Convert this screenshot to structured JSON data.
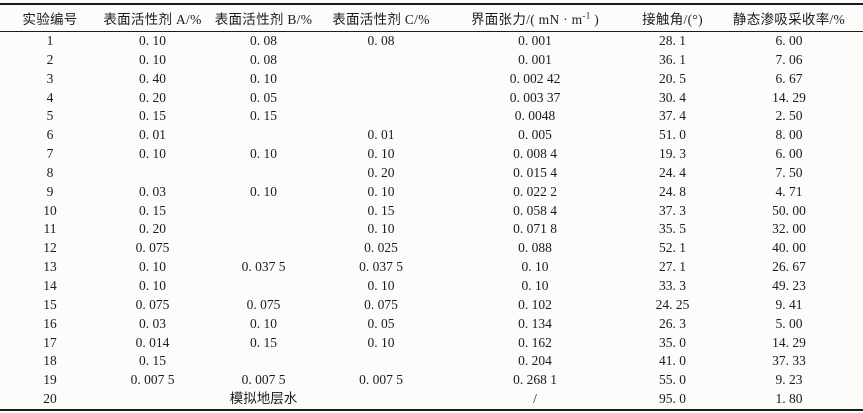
{
  "table": {
    "title_hint": "表面活性剂体系实验数据表",
    "columns": [
      {
        "key": "exp-no",
        "label": "实验编号"
      },
      {
        "key": "surfactant-a",
        "label": "表面活性剂 A/%"
      },
      {
        "key": "surfactant-b",
        "label": "表面活性剂 B/%"
      },
      {
        "key": "surfactant-c",
        "label": "表面活性剂 C/%"
      },
      {
        "key": "ift",
        "label_pre": "界面张力/( mN · m",
        "label_sup": "-1",
        "label_post": " )"
      },
      {
        "key": "contact-angle",
        "label": "接触角/(°)"
      },
      {
        "key": "recovery",
        "label": "静态渗吸采收率/%"
      }
    ],
    "rows": [
      [
        "1",
        "0. 10",
        "0. 08",
        "0. 08",
        "0. 001",
        "28. 1",
        "6. 00"
      ],
      [
        "2",
        "0. 10",
        "0. 08",
        "",
        "0. 001",
        "36. 1",
        "7. 06"
      ],
      [
        "3",
        "0. 40",
        "0. 10",
        "",
        "0. 002 42",
        "20. 5",
        "6. 67"
      ],
      [
        "4",
        "0. 20",
        "0. 05",
        "",
        "0. 003 37",
        "30. 4",
        "14. 29"
      ],
      [
        "5",
        "0. 15",
        "0. 15",
        "",
        "0. 0048",
        "37. 4",
        "2. 50"
      ],
      [
        "6",
        "0. 01",
        "",
        "0. 01",
        "0. 005",
        "51. 0",
        "8. 00"
      ],
      [
        "7",
        "0. 10",
        "0. 10",
        "0. 10",
        "0. 008 4",
        "19. 3",
        "6. 00"
      ],
      [
        "8",
        "",
        "",
        "0. 20",
        "0. 015 4",
        "24. 4",
        "7. 50"
      ],
      [
        "9",
        "0. 03",
        "0. 10",
        "0. 10",
        "0. 022 2",
        "24. 8",
        "4. 71"
      ],
      [
        "10",
        "0. 15",
        "",
        "0. 15",
        "0. 058 4",
        "37. 3",
        "50. 00"
      ],
      [
        "11",
        "0. 20",
        "",
        "0. 10",
        "0. 071 8",
        "35. 5",
        "32. 00"
      ],
      [
        "12",
        "0. 075",
        "",
        "0. 025",
        "0. 088",
        "52. 1",
        "40. 00"
      ],
      [
        "13",
        "0. 10",
        "0. 037 5",
        "0. 037 5",
        "0. 10",
        "27. 1",
        "26. 67"
      ],
      [
        "14",
        "0. 10",
        "",
        "0. 10",
        "0. 10",
        "33. 3",
        "49. 23"
      ],
      [
        "15",
        "0. 075",
        "0. 075",
        "0. 075",
        "0. 102",
        "24. 25",
        "9. 41"
      ],
      [
        "16",
        "0. 03",
        "0. 10",
        "0. 05",
        "0. 134",
        "26. 3",
        "5. 00"
      ],
      [
        "17",
        "0. 014",
        "0. 15",
        "0. 10",
        "0. 162",
        "35. 0",
        "14. 29"
      ],
      [
        "18",
        "0. 15",
        "",
        "",
        "0. 204",
        "41. 0",
        "37. 33"
      ],
      [
        "19",
        "0. 007 5",
        "0. 007 5",
        "0. 007 5",
        "0. 268 1",
        "55. 0",
        "9. 23"
      ],
      [
        "20",
        "",
        "模拟地层水",
        "",
        "/",
        "95. 0",
        "1. 80"
      ]
    ],
    "colors": {
      "rule": "#1c1c1c",
      "text": "#1b1b1b",
      "background": "#fcfcfa"
    }
  }
}
